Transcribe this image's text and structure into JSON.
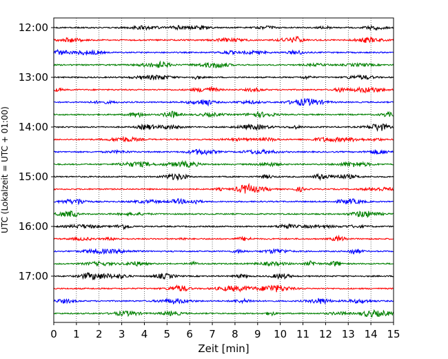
{
  "chart_data": {
    "type": "line",
    "title": "",
    "xlabel": "Zeit  [min]",
    "ylabel": "UTC (Lokalzeit = UTC + 01:00)",
    "xlim": [
      0,
      15
    ],
    "x_ticks": [
      "0",
      "1",
      "2",
      "3",
      "4",
      "5",
      "6",
      "7",
      "8",
      "9",
      "10",
      "11",
      "12",
      "13",
      "14",
      "15"
    ],
    "y_tick_labels": [
      "12:00",
      "13:00",
      "14:00",
      "15:00",
      "16:00",
      "17:00"
    ],
    "trace_interval_minutes": 15,
    "trace_count": 24,
    "trace_start": "12:00",
    "trace_end": "17:45",
    "color_cycle": [
      "#000000",
      "#ff0000",
      "#0000ff",
      "#008000"
    ],
    "grid": "vertical-dotted",
    "legend": "none"
  }
}
